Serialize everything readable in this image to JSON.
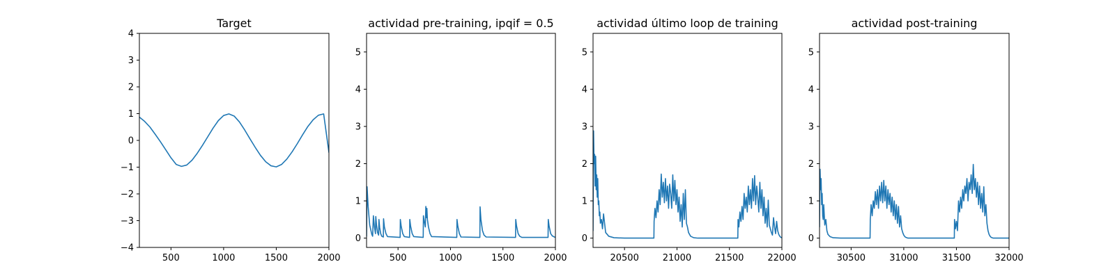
{
  "colors": {
    "line": "#1f77b4",
    "axes": "#000000",
    "background": "#ffffff"
  },
  "chart_data": [
    {
      "type": "line",
      "title": "Target",
      "xlabel": "",
      "ylabel": "",
      "xlim": [
        200,
        2000
      ],
      "ylim": [
        -4,
        4
      ],
      "xticks": [
        500,
        1000,
        1500,
        2000
      ],
      "yticks": [
        -4,
        -3,
        -2,
        -1,
        0,
        1,
        2,
        3,
        4
      ],
      "xtick_labels": [
        "500",
        "1000",
        "1500",
        "2000"
      ],
      "ytick_labels": [
        "−4",
        "−3",
        "−2",
        "−1",
        "0",
        "1",
        "2",
        "3",
        "4"
      ],
      "grid": false,
      "series": [
        {
          "x": [
            200,
            250,
            300,
            350,
            400,
            450,
            500,
            550,
            600,
            650,
            700,
            750,
            800,
            850,
            900,
            950,
            1000,
            1050,
            1100,
            1150,
            1200,
            1250,
            1300,
            1350,
            1400,
            1450,
            1500,
            1550,
            1600,
            1650,
            1700,
            1750,
            1800,
            1850,
            1900,
            1950,
            2000
          ],
          "y": [
            0.87,
            0.71,
            0.5,
            0.23,
            -0.05,
            -0.35,
            -0.65,
            -0.9,
            -0.97,
            -0.92,
            -0.74,
            -0.48,
            -0.18,
            0.14,
            0.46,
            0.74,
            0.93,
            0.99,
            0.91,
            0.69,
            0.39,
            0.06,
            -0.26,
            -0.56,
            -0.8,
            -0.95,
            -0.99,
            -0.9,
            -0.7,
            -0.43,
            -0.12,
            0.21,
            0.52,
            0.77,
            0.94,
            0.99,
            -0.45
          ]
        }
      ]
    },
    {
      "type": "line",
      "title": "actividad pre-training, ipqif = 0.5",
      "xlabel": "",
      "ylabel": "",
      "xlim": [
        200,
        2000
      ],
      "ylim": [
        -0.25,
        5.5
      ],
      "xticks": [
        500,
        1000,
        1500,
        2000
      ],
      "yticks": [
        0,
        1,
        2,
        3,
        4,
        5
      ],
      "xtick_labels": [
        "500",
        "1000",
        "1500",
        "2000"
      ],
      "ytick_labels": [
        "0",
        "1",
        "2",
        "3",
        "4",
        "5"
      ],
      "grid": false,
      "series": [
        {
          "x": [
            200,
            205,
            215,
            230,
            250,
            258,
            265,
            275,
            285,
            288,
            295,
            305,
            315,
            318,
            325,
            335,
            345,
            360,
            362,
            370,
            385,
            400,
            520,
            522,
            530,
            545,
            560,
            610,
            612,
            620,
            635,
            650,
            740,
            742,
            750,
            760,
            765,
            770,
            775,
            780,
            790,
            805,
            820,
            1060,
            1062,
            1070,
            1085,
            1100,
            1280,
            1282,
            1290,
            1305,
            1320,
            1340,
            1620,
            1622,
            1630,
            1645,
            1660,
            1680,
            1930,
            1932,
            1940,
            1955,
            1970,
            1990,
            2000
          ],
          "y": [
            0.05,
            1.38,
            0.85,
            0.35,
            0.1,
            0.05,
            0.6,
            0.3,
            0.12,
            0.58,
            0.35,
            0.15,
            0.08,
            0.5,
            0.28,
            0.12,
            0.05,
            0.03,
            0.52,
            0.3,
            0.12,
            0.04,
            0.02,
            0.5,
            0.32,
            0.12,
            0.04,
            0.02,
            0.5,
            0.32,
            0.12,
            0.04,
            0.02,
            0.6,
            0.45,
            0.3,
            0.85,
            0.55,
            0.8,
            0.5,
            0.3,
            0.12,
            0.04,
            0.02,
            0.5,
            0.32,
            0.12,
            0.03,
            0.02,
            0.84,
            0.5,
            0.2,
            0.08,
            0.03,
            0.02,
            0.5,
            0.32,
            0.12,
            0.05,
            0.02,
            0.02,
            0.5,
            0.32,
            0.12,
            0.06,
            0.03,
            0.02
          ]
        }
      ]
    },
    {
      "type": "line",
      "title": "actividad último loop de training",
      "xlabel": "",
      "ylabel": "",
      "xlim": [
        20200,
        22000
      ],
      "ylim": [
        -0.25,
        5.5
      ],
      "xticks": [
        20500,
        21000,
        21500,
        22000
      ],
      "yticks": [
        0,
        1,
        2,
        3,
        4,
        5
      ],
      "xtick_labels": [
        "20500",
        "21000",
        "21500",
        "22000"
      ],
      "ytick_labels": [
        "0",
        "1",
        "2",
        "3",
        "4",
        "5"
      ],
      "grid": false,
      "series": [
        {
          "x": [
            20200,
            20205,
            20210,
            20215,
            20220,
            20225,
            20230,
            20235,
            20240,
            20245,
            20250,
            20255,
            20260,
            20265,
            20270,
            20280,
            20290,
            20300,
            20320,
            20350,
            20400,
            20500,
            20600,
            20700,
            20780,
            20782,
            20790,
            20800,
            20810,
            20820,
            20830,
            20840,
            20850,
            20860,
            20870,
            20880,
            20890,
            20900,
            20910,
            20920,
            20930,
            20940,
            20950,
            20960,
            20970,
            20980,
            20990,
            21000,
            21010,
            21020,
            21030,
            21040,
            21050,
            21060,
            21070,
            21080,
            21090,
            21100,
            21110,
            21130,
            21160,
            21200,
            21300,
            21400,
            21500,
            21580,
            21582,
            21590,
            21600,
            21610,
            21620,
            21630,
            21640,
            21650,
            21660,
            21670,
            21680,
            21690,
            21700,
            21710,
            21720,
            21730,
            21740,
            21750,
            21760,
            21770,
            21780,
            21790,
            21800,
            21810,
            21820,
            21830,
            21840,
            21850,
            21860,
            21870,
            21880,
            21890,
            21900,
            21910,
            21920,
            21930,
            21940,
            21950,
            21960,
            21970,
            21980,
            21990,
            22000
          ],
          "y": [
            0.2,
            2.88,
            2.0,
            2.25,
            1.4,
            2.2,
            1.3,
            1.7,
            1.1,
            1.6,
            0.9,
            1.0,
            0.6,
            0.7,
            0.4,
            0.5,
            0.25,
            0.65,
            0.15,
            0.05,
            0.01,
            0.0,
            0.0,
            0.0,
            0.0,
            0.45,
            0.8,
            0.55,
            1.0,
            0.7,
            1.3,
            0.9,
            1.72,
            1.1,
            1.5,
            0.95,
            1.6,
            1.0,
            1.4,
            0.8,
            1.45,
            1.2,
            0.8,
            1.7,
            1.0,
            1.55,
            0.9,
            1.3,
            0.7,
            1.1,
            0.45,
            0.9,
            0.3,
            1.2,
            0.5,
            1.3,
            0.4,
            0.3,
            0.15,
            0.05,
            0.01,
            0.0,
            0.0,
            0.0,
            0.0,
            0.0,
            0.5,
            0.3,
            0.7,
            0.45,
            0.85,
            0.5,
            1.2,
            0.8,
            1.1,
            0.7,
            1.4,
            0.9,
            1.3,
            0.8,
            1.6,
            1.0,
            1.68,
            0.9,
            1.4,
            1.1,
            0.7,
            1.5,
            0.8,
            1.3,
            0.6,
            1.1,
            0.4,
            0.8,
            0.3,
            1.02,
            0.35,
            0.25,
            0.15,
            0.08,
            0.55,
            0.3,
            0.12,
            0.45,
            0.2,
            0.1,
            0.05,
            0.02,
            0.01
          ]
        }
      ]
    },
    {
      "type": "line",
      "title": "actividad post-training",
      "xlabel": "",
      "ylabel": "",
      "xlim": [
        30200,
        32000
      ],
      "ylim": [
        -0.25,
        5.5
      ],
      "xticks": [
        30500,
        31000,
        31500,
        32000
      ],
      "yticks": [
        0,
        1,
        2,
        3,
        4,
        5
      ],
      "xtick_labels": [
        "30500",
        "31000",
        "31500",
        "32000"
      ],
      "ytick_labels": [
        "0",
        "1",
        "2",
        "3",
        "4",
        "5"
      ],
      "grid": false,
      "series": [
        {
          "x": [
            30200,
            30205,
            30210,
            30215,
            30220,
            30225,
            30230,
            30235,
            30240,
            30250,
            30260,
            30270,
            30280,
            30300,
            30330,
            30400,
            30500,
            30600,
            30680,
            30682,
            30690,
            30700,
            30710,
            30720,
            30730,
            30740,
            30750,
            30760,
            30770,
            30780,
            30790,
            30800,
            30810,
            30820,
            30830,
            30840,
            30850,
            30860,
            30870,
            30880,
            30890,
            30900,
            30910,
            30920,
            30930,
            30940,
            30950,
            30960,
            30970,
            30980,
            30990,
            31000,
            31010,
            31020,
            31030,
            31040,
            31050,
            31060,
            31080,
            31100,
            31130,
            31200,
            31300,
            31400,
            31480,
            31482,
            31490,
            31500,
            31510,
            31520,
            31530,
            31540,
            31550,
            31560,
            31570,
            31580,
            31590,
            31600,
            31610,
            31620,
            31630,
            31640,
            31650,
            31660,
            31670,
            31680,
            31690,
            31700,
            31710,
            31720,
            31730,
            31740,
            31750,
            31760,
            31770,
            31780,
            31790,
            31800,
            31810,
            31820,
            31830,
            31840,
            31850,
            31860,
            31870,
            31880,
            31890,
            31900,
            31920,
            31950,
            32000
          ],
          "y": [
            0.3,
            1.85,
            1.3,
            1.6,
            0.9,
            1.2,
            0.6,
            0.5,
            0.9,
            0.35,
            0.5,
            0.2,
            0.1,
            0.04,
            0.01,
            0.0,
            0.0,
            0.0,
            0.0,
            0.5,
            0.9,
            0.6,
            1.0,
            0.8,
            1.25,
            0.9,
            1.3,
            0.8,
            1.4,
            1.0,
            1.5,
            0.95,
            1.55,
            1.0,
            1.4,
            0.8,
            1.3,
            0.9,
            1.2,
            0.7,
            1.1,
            0.6,
            1.0,
            0.5,
            0.9,
            0.4,
            0.85,
            0.3,
            0.6,
            0.25,
            0.15,
            0.08,
            0.04,
            0.02,
            0.01,
            0.0,
            0.0,
            0.0,
            0.0,
            0.0,
            0.0,
            0.0,
            0.0,
            0.0,
            0.0,
            0.5,
            0.25,
            0.45,
            0.2,
            1.0,
            0.7,
            1.1,
            0.8,
            1.3,
            1.0,
            1.4,
            1.2,
            1.6,
            1.0,
            1.5,
            1.3,
            1.7,
            1.2,
            1.98,
            1.3,
            1.6,
            1.1,
            1.5,
            0.9,
            1.4,
            0.8,
            1.2,
            0.7,
            1.38,
            0.6,
            0.9,
            0.4,
            0.2,
            0.1,
            0.05,
            0.02,
            0.01,
            0.0,
            0.0,
            0.0,
            0.0,
            0.0,
            0.0,
            0.0,
            0.0,
            0.0
          ]
        }
      ]
    }
  ]
}
